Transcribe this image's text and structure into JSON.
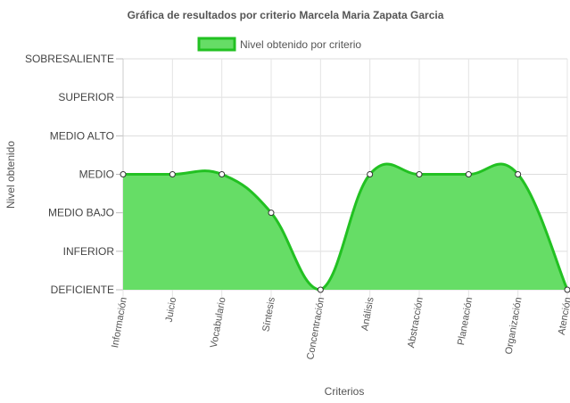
{
  "chart_data": {
    "type": "area",
    "title": "Gráfica de resultados por criterio Marcela Maria Zapata Garcia",
    "xlabel": "Criterios",
    "ylabel": "Nivel obtenido",
    "categories": [
      "Información",
      "Juicio",
      "Vocabulario",
      "Síntesis",
      "Concentración",
      "Análisis",
      "Abstracción",
      "Planeación",
      "Organización",
      "Atención"
    ],
    "y_levels": [
      "DEFICIENTE",
      "INFERIOR",
      "MEDIO BAJO",
      "MEDIO",
      "MEDIO ALTO",
      "SUPERIOR",
      "SOBRESALIENTE"
    ],
    "series": [
      {
        "name": "Nivel obtenido por criterio",
        "values": [
          3,
          3,
          3,
          2,
          0,
          3,
          3,
          3,
          3,
          0
        ]
      }
    ],
    "ylim": [
      0,
      6
    ],
    "legend_position": "top",
    "grid": true,
    "colors": {
      "fill": "#66DD66",
      "stroke": "#22C122",
      "point_fill": "#ffffff",
      "point_stroke": "#333333"
    }
  }
}
